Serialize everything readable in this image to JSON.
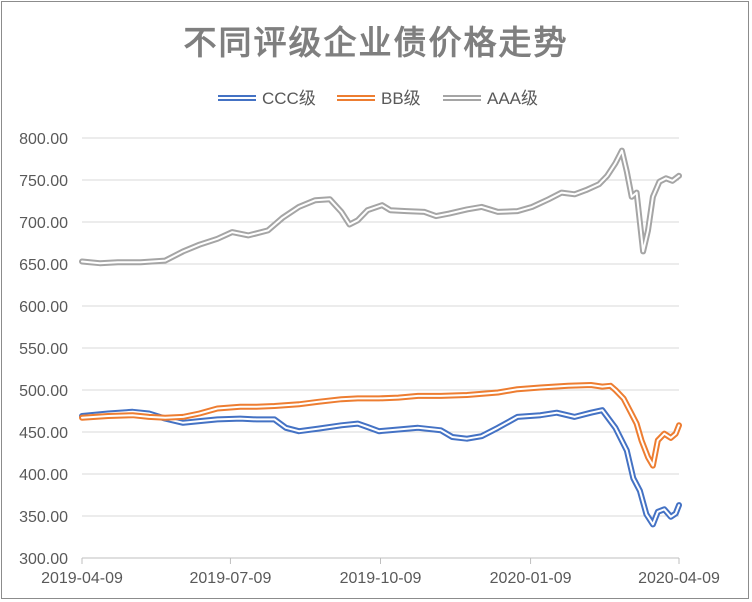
{
  "chart_data": {
    "type": "line",
    "title": "不同评级企业债价格走势",
    "xlabel": "",
    "ylabel": "",
    "ylim": [
      300,
      800
    ],
    "yticks": [
      "800.00",
      "750.00",
      "700.00",
      "650.00",
      "600.00",
      "550.00",
      "500.00",
      "450.00",
      "400.00",
      "350.00",
      "300.00"
    ],
    "xticks": [
      "2019-04-09",
      "2019-07-09",
      "2019-10-09",
      "2020-01-09",
      "2020-04-09"
    ],
    "x_range": [
      "2019-04-09",
      "2020-04-09"
    ],
    "grid": "horizontal",
    "legend_position": "top",
    "series": [
      {
        "name": "CCC级",
        "color": "#4472c4",
        "points": [
          [
            "2019-04-09",
            469
          ],
          [
            "2019-04-25",
            472
          ],
          [
            "2019-05-10",
            474
          ],
          [
            "2019-05-20",
            472
          ],
          [
            "2019-05-30",
            466
          ],
          [
            "2019-06-10",
            461
          ],
          [
            "2019-06-20",
            463
          ],
          [
            "2019-07-01",
            465
          ],
          [
            "2019-07-15",
            466
          ],
          [
            "2019-07-25",
            465
          ],
          [
            "2019-08-05",
            465
          ],
          [
            "2019-08-12",
            455
          ],
          [
            "2019-08-20",
            451
          ],
          [
            "2019-09-01",
            454
          ],
          [
            "2019-09-15",
            458
          ],
          [
            "2019-09-25",
            460
          ],
          [
            "2019-10-01",
            456
          ],
          [
            "2019-10-08",
            451
          ],
          [
            "2019-10-20",
            453
          ],
          [
            "2019-11-01",
            455
          ],
          [
            "2019-11-15",
            452
          ],
          [
            "2019-11-22",
            444
          ],
          [
            "2019-12-01",
            442
          ],
          [
            "2019-12-10",
            445
          ],
          [
            "2019-12-20",
            455
          ],
          [
            "2020-01-01",
            468
          ],
          [
            "2020-01-15",
            470
          ],
          [
            "2020-01-25",
            473
          ],
          [
            "2020-02-05",
            468
          ],
          [
            "2020-02-15",
            473
          ],
          [
            "2020-02-22",
            476
          ],
          [
            "2020-03-01",
            455
          ],
          [
            "2020-03-08",
            428
          ],
          [
            "2020-03-12",
            395
          ],
          [
            "2020-03-16",
            380
          ],
          [
            "2020-03-20",
            352
          ],
          [
            "2020-03-24",
            340
          ],
          [
            "2020-03-27",
            355
          ],
          [
            "2020-03-31",
            358
          ],
          [
            "2020-04-04",
            349
          ],
          [
            "2020-04-07",
            353
          ],
          [
            "2020-04-09",
            363
          ]
        ]
      },
      {
        "name": "BB级",
        "color": "#ed7d31",
        "points": [
          [
            "2019-04-09",
            467
          ],
          [
            "2019-04-25",
            469
          ],
          [
            "2019-05-10",
            470
          ],
          [
            "2019-05-20",
            468
          ],
          [
            "2019-05-30",
            467
          ],
          [
            "2019-06-10",
            468
          ],
          [
            "2019-06-20",
            472
          ],
          [
            "2019-07-01",
            478
          ],
          [
            "2019-07-15",
            480
          ],
          [
            "2019-07-25",
            480
          ],
          [
            "2019-08-05",
            481
          ],
          [
            "2019-08-20",
            483
          ],
          [
            "2019-09-01",
            486
          ],
          [
            "2019-09-15",
            489
          ],
          [
            "2019-09-25",
            490
          ],
          [
            "2019-10-08",
            490
          ],
          [
            "2019-10-20",
            491
          ],
          [
            "2019-11-01",
            493
          ],
          [
            "2019-11-15",
            493
          ],
          [
            "2019-12-01",
            494
          ],
          [
            "2019-12-20",
            497
          ],
          [
            "2020-01-01",
            501
          ],
          [
            "2020-01-15",
            503
          ],
          [
            "2020-02-01",
            505
          ],
          [
            "2020-02-15",
            506
          ],
          [
            "2020-02-22",
            504
          ],
          [
            "2020-02-27",
            505
          ],
          [
            "2020-03-01",
            500
          ],
          [
            "2020-03-06",
            490
          ],
          [
            "2020-03-10",
            475
          ],
          [
            "2020-03-14",
            460
          ],
          [
            "2020-03-17",
            440
          ],
          [
            "2020-03-21",
            420
          ],
          [
            "2020-03-24",
            410
          ],
          [
            "2020-03-27",
            440
          ],
          [
            "2020-03-31",
            448
          ],
          [
            "2020-04-04",
            443
          ],
          [
            "2020-04-07",
            448
          ],
          [
            "2020-04-09",
            458
          ]
        ]
      },
      {
        "name": "AAA级",
        "color": "#a5a5a5",
        "points": [
          [
            "2019-04-09",
            653
          ],
          [
            "2019-04-20",
            651
          ],
          [
            "2019-05-01",
            652
          ],
          [
            "2019-05-15",
            652
          ],
          [
            "2019-05-30",
            654
          ],
          [
            "2019-06-10",
            665
          ],
          [
            "2019-06-20",
            673
          ],
          [
            "2019-07-01",
            680
          ],
          [
            "2019-07-10",
            688
          ],
          [
            "2019-07-20",
            684
          ],
          [
            "2019-08-01",
            690
          ],
          [
            "2019-08-10",
            705
          ],
          [
            "2019-08-20",
            718
          ],
          [
            "2019-08-30",
            726
          ],
          [
            "2019-09-08",
            727
          ],
          [
            "2019-09-15",
            712
          ],
          [
            "2019-09-20",
            697
          ],
          [
            "2019-09-25",
            702
          ],
          [
            "2019-10-01",
            714
          ],
          [
            "2019-10-10",
            720
          ],
          [
            "2019-10-15",
            714
          ],
          [
            "2019-10-25",
            713
          ],
          [
            "2019-11-05",
            712
          ],
          [
            "2019-11-12",
            707
          ],
          [
            "2019-11-20",
            710
          ],
          [
            "2019-12-01",
            715
          ],
          [
            "2019-12-10",
            718
          ],
          [
            "2019-12-20",
            712
          ],
          [
            "2020-01-01",
            713
          ],
          [
            "2020-01-10",
            718
          ],
          [
            "2020-01-20",
            727
          ],
          [
            "2020-01-28",
            735
          ],
          [
            "2020-02-05",
            733
          ],
          [
            "2020-02-12",
            738
          ],
          [
            "2020-02-20",
            745
          ],
          [
            "2020-02-25",
            755
          ],
          [
            "2020-03-01",
            770
          ],
          [
            "2020-03-05",
            785
          ],
          [
            "2020-03-08",
            760
          ],
          [
            "2020-03-11",
            730
          ],
          [
            "2020-03-14",
            735
          ],
          [
            "2020-03-18",
            665
          ],
          [
            "2020-03-21",
            690
          ],
          [
            "2020-03-24",
            730
          ],
          [
            "2020-03-28",
            748
          ],
          [
            "2020-04-01",
            752
          ],
          [
            "2020-04-05",
            749
          ],
          [
            "2020-04-09",
            755
          ]
        ]
      }
    ]
  }
}
